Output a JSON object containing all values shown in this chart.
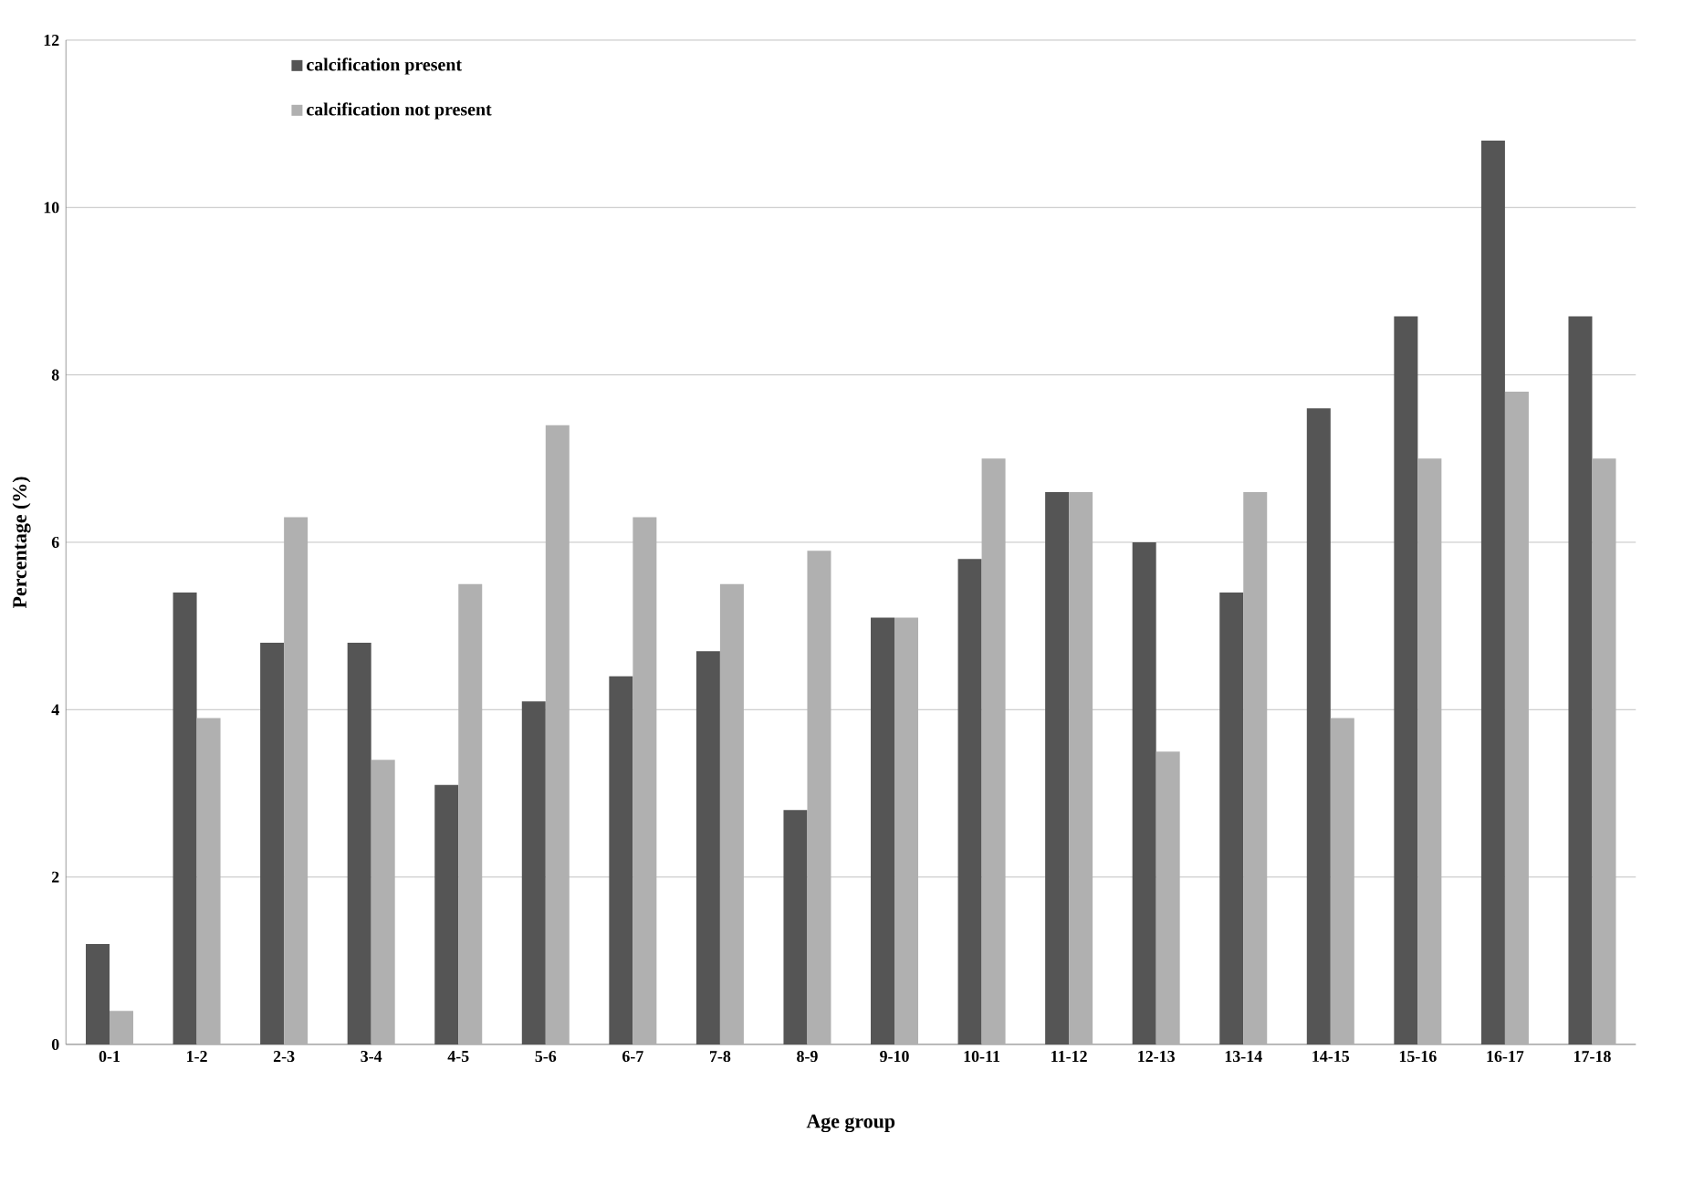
{
  "chart_data": {
    "type": "bar",
    "xlabel": "Age group",
    "ylabel": "Percentage (%)",
    "categories": [
      "0-1",
      "1-2",
      "2-3",
      "3-4",
      "4-5",
      "5-6",
      "6-7",
      "7-8",
      "8-9",
      "9-10",
      "10-11",
      "11-12",
      "12-13",
      "13-14",
      "14-15",
      "15-16",
      "16-17",
      "17-18"
    ],
    "series": [
      {
        "name": "calcification present",
        "color": "#555555",
        "values": [
          1.2,
          5.4,
          4.8,
          4.8,
          3.1,
          4.1,
          4.4,
          4.7,
          2.8,
          5.1,
          5.8,
          6.6,
          6.0,
          5.4,
          7.6,
          8.7,
          10.8,
          8.7
        ]
      },
      {
        "name": "calcification not present",
        "color": "#b0b0b0",
        "values": [
          0.4,
          3.9,
          6.3,
          3.4,
          5.5,
          7.4,
          6.3,
          5.5,
          5.9,
          5.1,
          7.0,
          6.6,
          3.5,
          6.6,
          3.9,
          7.0,
          7.8,
          7.0
        ]
      }
    ],
    "ylim": [
      0,
      12
    ],
    "yticks": [
      0,
      2,
      4,
      6,
      8,
      10,
      12
    ],
    "grid": "y",
    "legend": "top left"
  }
}
